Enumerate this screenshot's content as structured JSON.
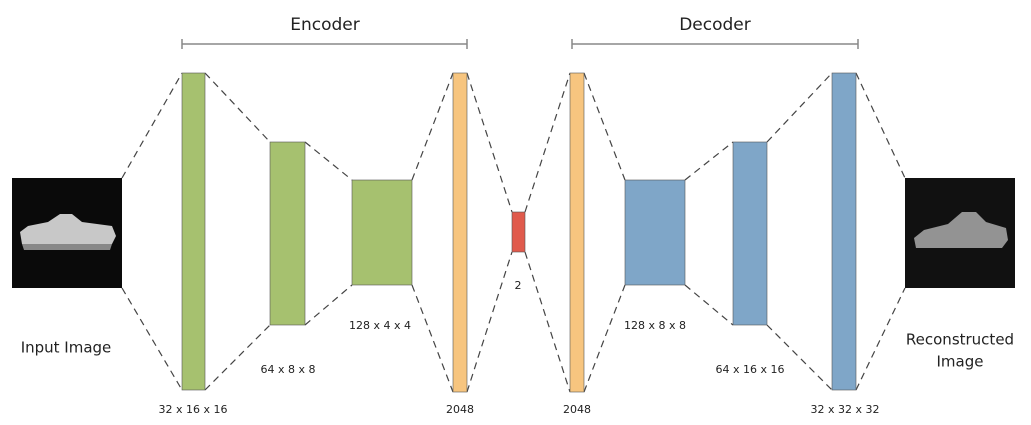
{
  "sections": {
    "encoder": "Encoder",
    "decoder": "Decoder"
  },
  "input": {
    "label": "Input Image"
  },
  "output": {
    "label": [
      "Reconstructed",
      "Image"
    ]
  },
  "layers": [
    {
      "label": "32 x 16 x 16"
    },
    {
      "label": "64 x 8 x 8"
    },
    {
      "label": "128 x 4 x 4"
    },
    {
      "label": "2048"
    },
    {
      "label": "2"
    },
    {
      "label": "2048"
    },
    {
      "label": "128 x 8 x 8"
    },
    {
      "label": "64 x 16 x 16"
    },
    {
      "label": "32 x 32 x 32"
    }
  ]
}
